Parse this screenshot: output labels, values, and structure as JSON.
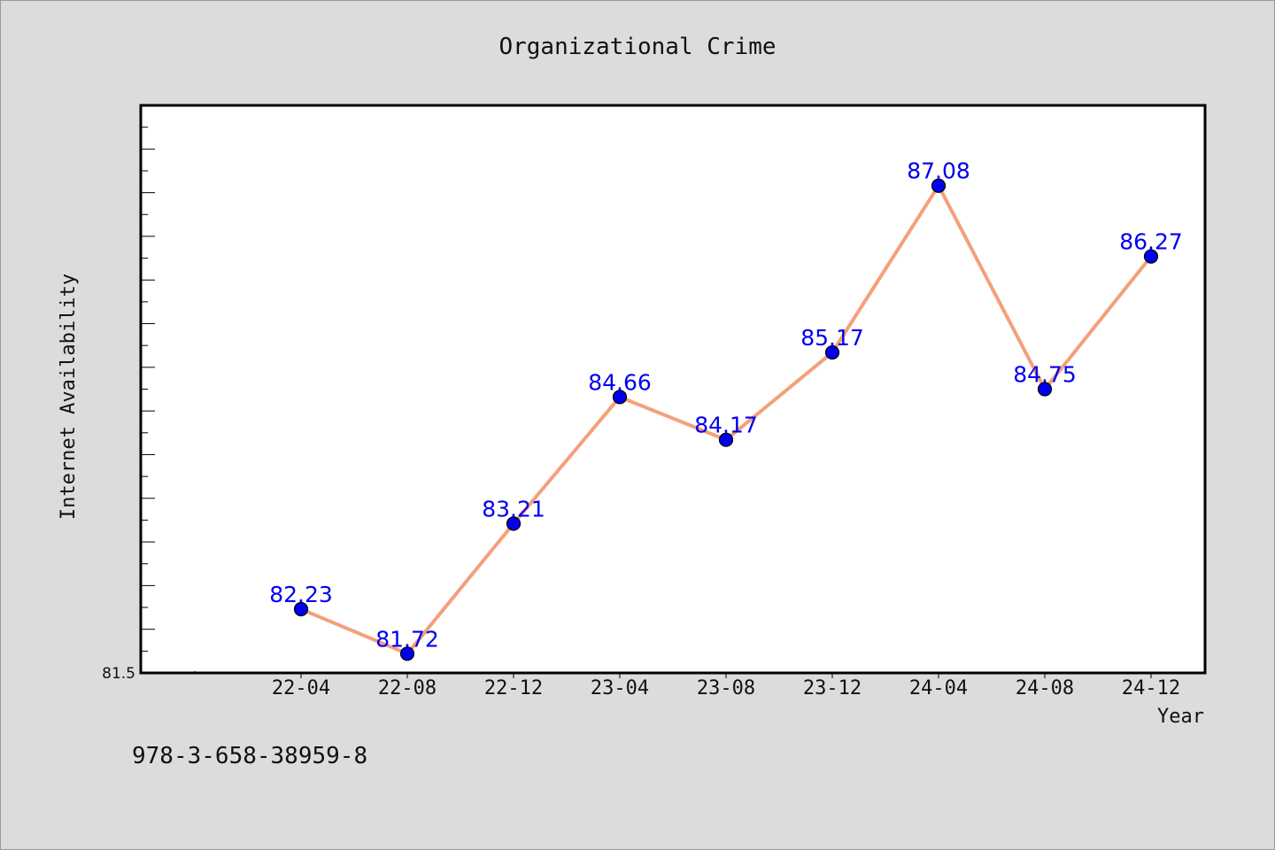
{
  "chart_data": {
    "type": "line",
    "title": "Organizational Crime",
    "xlabel": "Year",
    "ylabel": "Internet Availability",
    "categories": [
      "22-04",
      "22-08",
      "22-12",
      "23-04",
      "23-08",
      "23-12",
      "24-04",
      "24-08",
      "24-12"
    ],
    "series": [
      {
        "values": [
          82.23,
          81.72,
          83.21,
          84.66,
          84.17,
          85.17,
          87.08,
          84.75,
          86.27
        ]
      }
    ],
    "ylim": [
      81.5,
      88.0
    ],
    "ytick_labels": [
      "81.5"
    ],
    "grid": false,
    "legend": "none",
    "line_color": "#f4a07a",
    "marker_color": "#0000ee",
    "label_color": "#0000ee"
  },
  "footer": {
    "code": "978-3-658-38959-8"
  }
}
